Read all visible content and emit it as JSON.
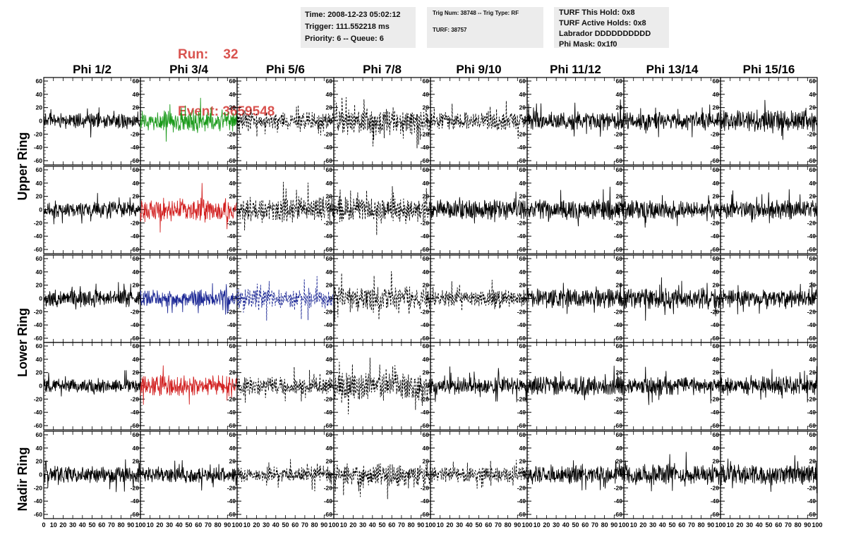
{
  "header": {
    "run_label": "Run:",
    "run_value": "32",
    "event_label": "Event:",
    "event_value": "3659548",
    "info1": {
      "time": "Time: 2008-12-23 05:02:12",
      "trigger": "Trigger: 111.552218 ms",
      "priority": "Priority: 6 -- Queue: 6"
    },
    "info2": {
      "trig": "Trig Num: 38748 -- Trig Type: RF",
      "turf": "TURF: 38757"
    },
    "info3": {
      "hold": "TURF This Hold: 0x8",
      "active": "TURF Active Holds: 0x8",
      "labrador": "Labrador DDDDDDDDDD",
      "phimask": "Phi Mask: 0x1f0"
    }
  },
  "colors": {
    "black": "#000000",
    "green": "#1a9a1a",
    "red": "#d22020",
    "blue": "#1e2a96",
    "header_red": "#d9534f",
    "info_bg": "#ececec"
  },
  "chart_data": {
    "type": "line",
    "columns": [
      "Phi 1/2",
      "Phi 3/4",
      "Phi 5/6",
      "Phi 7/8",
      "Phi 9/10",
      "Phi 11/12",
      "Phi 13/14",
      "Phi 15/16"
    ],
    "rows": [
      "Upper Ring",
      "Lower Ring",
      "Nadir Ring"
    ],
    "xlim": [
      0,
      100
    ],
    "ylim": [
      -60,
      60
    ],
    "x_ticks": [
      0,
      10,
      20,
      30,
      40,
      50,
      60,
      70,
      80,
      90,
      100
    ],
    "y_ticks": [
      -60,
      -40,
      -20,
      0,
      20,
      40,
      60
    ],
    "samples_per_trace": 260,
    "panels": [
      {
        "row": 0,
        "col": 0,
        "color": "black",
        "dashed": false,
        "amp": 9,
        "seed": 11
      },
      {
        "row": 0,
        "col": 1,
        "color": "green",
        "dashed": false,
        "amp": 13,
        "seed": 12
      },
      {
        "row": 0,
        "col": 2,
        "color": "black",
        "dashed": true,
        "amp": 10,
        "seed": 13
      },
      {
        "row": 0,
        "col": 3,
        "color": "black",
        "dashed": true,
        "amp": 16,
        "seed": 14
      },
      {
        "row": 0,
        "col": 4,
        "color": "black",
        "dashed": true,
        "amp": 11,
        "seed": 15
      },
      {
        "row": 0,
        "col": 5,
        "color": "black",
        "dashed": false,
        "amp": 11,
        "seed": 16
      },
      {
        "row": 0,
        "col": 6,
        "color": "black",
        "dashed": false,
        "amp": 11,
        "seed": 17
      },
      {
        "row": 0,
        "col": 7,
        "color": "black",
        "dashed": false,
        "amp": 12,
        "seed": 18
      },
      {
        "row": 1,
        "col": 0,
        "color": "black",
        "dashed": false,
        "amp": 9,
        "seed": 21
      },
      {
        "row": 1,
        "col": 1,
        "color": "red",
        "dashed": false,
        "amp": 14,
        "seed": 22
      },
      {
        "row": 1,
        "col": 2,
        "color": "black",
        "dashed": true,
        "amp": 15,
        "seed": 23
      },
      {
        "row": 1,
        "col": 3,
        "color": "black",
        "dashed": true,
        "amp": 14,
        "seed": 24
      },
      {
        "row": 1,
        "col": 4,
        "color": "black",
        "dashed": false,
        "amp": 12,
        "seed": 25
      },
      {
        "row": 1,
        "col": 5,
        "color": "black",
        "dashed": false,
        "amp": 12,
        "seed": 26
      },
      {
        "row": 1,
        "col": 6,
        "color": "black",
        "dashed": false,
        "amp": 11,
        "seed": 27
      },
      {
        "row": 1,
        "col": 7,
        "color": "black",
        "dashed": false,
        "amp": 11,
        "seed": 28
      },
      {
        "row": 2,
        "col": 0,
        "color": "black",
        "dashed": false,
        "amp": 10,
        "seed": 31
      },
      {
        "row": 2,
        "col": 1,
        "color": "blue",
        "dashed": false,
        "amp": 10,
        "seed": 32
      },
      {
        "row": 2,
        "col": 2,
        "color": "blue",
        "dashed": true,
        "amp": 12,
        "seed": 33
      },
      {
        "row": 2,
        "col": 3,
        "color": "black",
        "dashed": true,
        "amp": 15,
        "seed": 34
      },
      {
        "row": 2,
        "col": 4,
        "color": "black",
        "dashed": true,
        "amp": 10,
        "seed": 35
      },
      {
        "row": 2,
        "col": 5,
        "color": "black",
        "dashed": false,
        "amp": 11,
        "seed": 36
      },
      {
        "row": 2,
        "col": 6,
        "color": "black",
        "dashed": false,
        "amp": 12,
        "seed": 37
      },
      {
        "row": 2,
        "col": 7,
        "color": "black",
        "dashed": false,
        "amp": 10,
        "seed": 38
      },
      {
        "row": 3,
        "col": 0,
        "color": "black",
        "dashed": false,
        "amp": 8,
        "seed": 41
      },
      {
        "row": 3,
        "col": 1,
        "color": "red",
        "dashed": false,
        "amp": 12,
        "seed": 42
      },
      {
        "row": 3,
        "col": 2,
        "color": "black",
        "dashed": true,
        "amp": 10,
        "seed": 43
      },
      {
        "row": 3,
        "col": 3,
        "color": "black",
        "dashed": true,
        "amp": 16,
        "seed": 44
      },
      {
        "row": 3,
        "col": 4,
        "color": "black",
        "dashed": false,
        "amp": 10,
        "seed": 45
      },
      {
        "row": 3,
        "col": 5,
        "color": "black",
        "dashed": false,
        "amp": 11,
        "seed": 46
      },
      {
        "row": 3,
        "col": 6,
        "color": "black",
        "dashed": false,
        "amp": 11,
        "seed": 47
      },
      {
        "row": 3,
        "col": 7,
        "color": "black",
        "dashed": false,
        "amp": 11,
        "seed": 48
      },
      {
        "row": 4,
        "col": 0,
        "color": "black",
        "dashed": false,
        "amp": 10,
        "seed": 51
      },
      {
        "row": 4,
        "col": 1,
        "color": "black",
        "dashed": false,
        "amp": 9,
        "seed": 52
      },
      {
        "row": 4,
        "col": 2,
        "color": "black",
        "dashed": true,
        "amp": 9,
        "seed": 53
      },
      {
        "row": 4,
        "col": 3,
        "color": "black",
        "dashed": true,
        "amp": 14,
        "seed": 54
      },
      {
        "row": 4,
        "col": 4,
        "color": "black",
        "dashed": true,
        "amp": 9,
        "seed": 55
      },
      {
        "row": 4,
        "col": 5,
        "color": "black",
        "dashed": false,
        "amp": 11,
        "seed": 56
      },
      {
        "row": 4,
        "col": 6,
        "color": "black",
        "dashed": false,
        "amp": 12,
        "seed": 57
      },
      {
        "row": 4,
        "col": 7,
        "color": "black",
        "dashed": false,
        "amp": 12,
        "seed": 58
      }
    ]
  }
}
